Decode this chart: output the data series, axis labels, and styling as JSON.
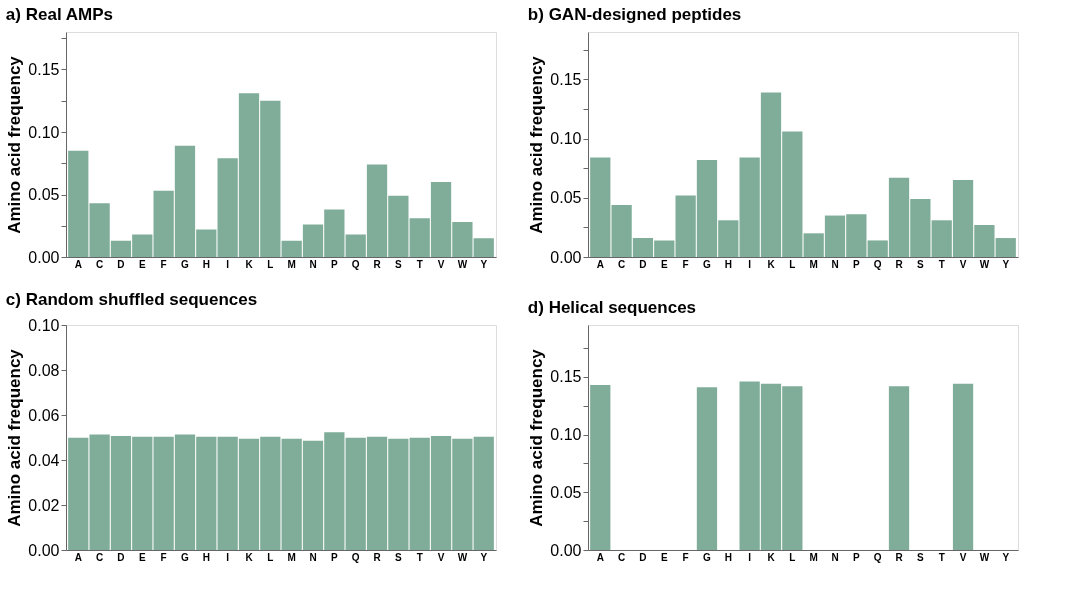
{
  "chart_data": [
    {
      "type": "bar",
      "title": "a) Real AMPs",
      "ylabel": "Amino acid frequency",
      "categories": [
        "A",
        "C",
        "D",
        "E",
        "F",
        "G",
        "H",
        "I",
        "K",
        "L",
        "M",
        "N",
        "P",
        "Q",
        "R",
        "S",
        "T",
        "V",
        "W",
        "Y"
      ],
      "values": [
        0.085,
        0.043,
        0.013,
        0.018,
        0.053,
        0.089,
        0.022,
        0.079,
        0.131,
        0.125,
        0.013,
        0.026,
        0.038,
        0.018,
        0.074,
        0.049,
        0.031,
        0.06,
        0.028,
        0.015
      ],
      "color": "#7fad99",
      "ylim": [
        0,
        0.18
      ],
      "yticks": [
        {
          "value": 0,
          "label": "0.00"
        },
        {
          "value": 0.025,
          "label": null
        },
        {
          "value": 0.05,
          "label": "0.05"
        },
        {
          "value": 0.075,
          "label": null
        },
        {
          "value": 0.1,
          "label": "0.10"
        },
        {
          "value": 0.125,
          "label": null
        },
        {
          "value": 0.15,
          "label": "0.15"
        },
        {
          "value": 0.175,
          "label": null
        }
      ]
    },
    {
      "type": "bar",
      "title": "b) GAN-designed peptides",
      "ylabel": "Amino acid frequency",
      "categories": [
        "A",
        "C",
        "D",
        "E",
        "F",
        "G",
        "H",
        "I",
        "K",
        "L",
        "M",
        "N",
        "P",
        "Q",
        "R",
        "S",
        "T",
        "V",
        "W",
        "Y"
      ],
      "values": [
        0.084,
        0.044,
        0.016,
        0.014,
        0.052,
        0.082,
        0.031,
        0.084,
        0.139,
        0.106,
        0.02,
        0.035,
        0.036,
        0.014,
        0.067,
        0.049,
        0.031,
        0.065,
        0.027,
        0.016
      ],
      "color": "#7fad99",
      "ylim": [
        0,
        0.19
      ],
      "yticks": [
        {
          "value": 0,
          "label": "0.00"
        },
        {
          "value": 0.025,
          "label": null
        },
        {
          "value": 0.05,
          "label": "0.05"
        },
        {
          "value": 0.075,
          "label": null
        },
        {
          "value": 0.1,
          "label": "0.10"
        },
        {
          "value": 0.125,
          "label": null
        },
        {
          "value": 0.15,
          "label": "0.15"
        },
        {
          "value": 0.175,
          "label": null
        }
      ]
    },
    {
      "type": "bar",
      "title": "c) Random shuffled sequences",
      "ylabel": "Amino acid frequency",
      "categories": [
        "A",
        "C",
        "D",
        "E",
        "F",
        "G",
        "H",
        "I",
        "K",
        "L",
        "M",
        "N",
        "P",
        "Q",
        "R",
        "S",
        "T",
        "V",
        "W",
        "Y"
      ],
      "values": [
        0.0499,
        0.0513,
        0.0507,
        0.0503,
        0.0503,
        0.0513,
        0.0503,
        0.0503,
        0.0494,
        0.0503,
        0.0494,
        0.0486,
        0.0523,
        0.0499,
        0.0503,
        0.0494,
        0.0499,
        0.0507,
        0.0494,
        0.0503
      ],
      "color": "#7fad99",
      "ylim": [
        0,
        0.1
      ],
      "yticks": [
        {
          "value": 0,
          "label": "0.00"
        },
        {
          "value": 0.02,
          "label": "0.02"
        },
        {
          "value": 0.04,
          "label": "0.04"
        },
        {
          "value": 0.06,
          "label": "0.06"
        },
        {
          "value": 0.08,
          "label": "0.08"
        },
        {
          "value": 0.1,
          "label": "0.10"
        }
      ]
    },
    {
      "type": "bar",
      "title": "d) Helical sequences",
      "ylabel": "Amino acid frequency",
      "categories": [
        "A",
        "C",
        "D",
        "E",
        "F",
        "G",
        "H",
        "I",
        "K",
        "L",
        "M",
        "N",
        "P",
        "Q",
        "R",
        "S",
        "T",
        "V",
        "W",
        "Y"
      ],
      "values": [
        0.143,
        0,
        0,
        0,
        0,
        0.141,
        0,
        0.146,
        0.144,
        0.142,
        0,
        0,
        0,
        0,
        0.142,
        0,
        0,
        0.144,
        0,
        0
      ],
      "color": "#7fad99",
      "ylim": [
        0,
        0.195
      ],
      "yticks": [
        {
          "value": 0,
          "label": "0.00"
        },
        {
          "value": 0.025,
          "label": null
        },
        {
          "value": 0.05,
          "label": "0.05"
        },
        {
          "value": 0.075,
          "label": null
        },
        {
          "value": 0.1,
          "label": "0.10"
        },
        {
          "value": 0.125,
          "label": null
        },
        {
          "value": 0.15,
          "label": "0.15"
        },
        {
          "value": 0.175,
          "label": null
        }
      ]
    }
  ]
}
